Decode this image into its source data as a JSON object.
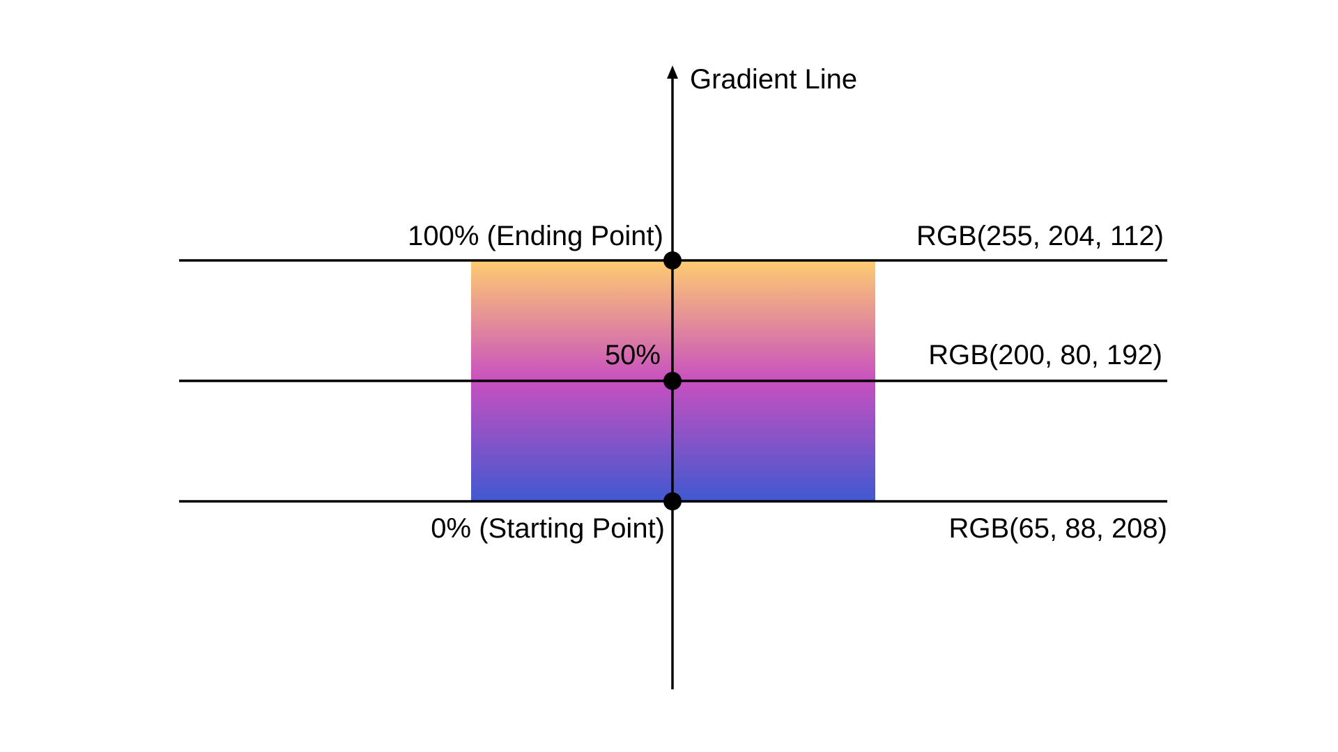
{
  "axis": {
    "title": "Gradient Line"
  },
  "stops": [
    {
      "position_label": "100% (Ending Point)",
      "color_label": "RGB(255, 204, 112)",
      "color": "#ffcc70"
    },
    {
      "position_label": "50%",
      "color_label": "RGB(200, 80, 192)",
      "color": "#c850c0"
    },
    {
      "position_label": "0% (Starting Point)",
      "color_label": "RGB(65, 88, 208)",
      "color": "#4158d0"
    }
  ]
}
